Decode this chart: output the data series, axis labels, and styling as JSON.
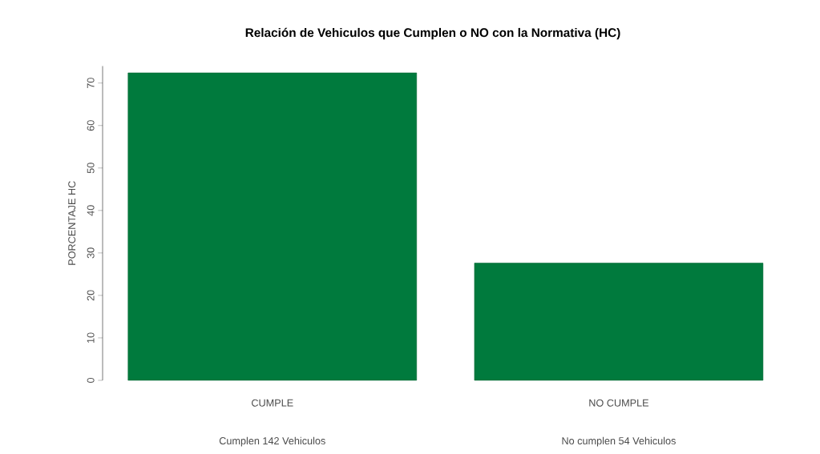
{
  "chart_data": {
    "type": "bar",
    "title": "Relación de Vehiculos que Cumplen o NO con la Normativa (HC)",
    "ylabel": "PORCENTAJE HC",
    "categories": [
      "CUMPLE",
      "NO CUMPLE"
    ],
    "values": [
      72.4,
      27.6
    ],
    "color": "#007a3d",
    "ylim": [
      0,
      74
    ],
    "yticks": [
      0,
      10,
      20,
      30,
      40,
      50,
      60,
      70
    ],
    "annotations": [
      "Cumplen 142 Vehiculos",
      "No cumplen 54 Vehiculos"
    ]
  }
}
